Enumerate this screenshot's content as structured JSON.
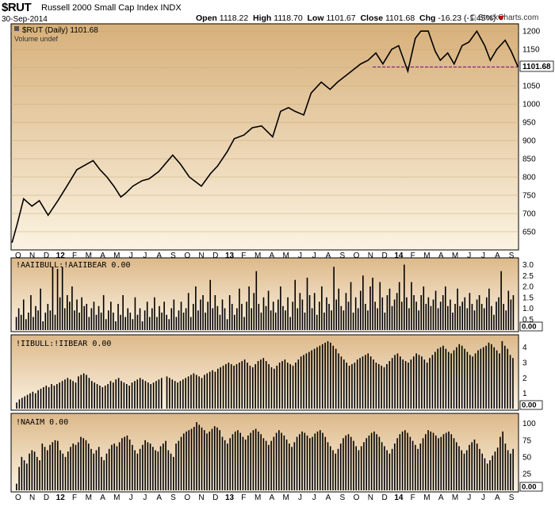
{
  "header": {
    "symbol": "$RUT",
    "name": "Russell 2000 Small Cap Index",
    "exchange": "INDX",
    "date": "30-Sep-2014",
    "open_label": "Open",
    "open": "1118.22",
    "high_label": "High",
    "high": "1118.70",
    "low_label": "Low",
    "low": "1101.67",
    "close_label": "Close",
    "close": "1101.68",
    "chg_label": "Chg",
    "chg": "-16.23 (-1.45%)",
    "brand": "© StockCharts.com"
  },
  "colors": {
    "price_bg_top": "#d7b07a",
    "price_bg_bottom": "#fbf3e1",
    "indicator_bg_top": "#ddb98a",
    "indicator_bg_bottom": "#fbf3e3",
    "line": "#000000",
    "support_line": "#800080",
    "brand_icon": "brand-icon"
  },
  "chart_data": [
    {
      "type": "line",
      "title": "$RUT (Daily) 1101.68",
      "subtitle": "Volume undef",
      "last_value_label": "1101.68",
      "support_level": 1101.68,
      "ylim": [
        600,
        1220
      ],
      "y_ticks": [
        650,
        700,
        750,
        800,
        850,
        900,
        950,
        1000,
        1050,
        1100,
        1150,
        1200
      ],
      "x_ticks": [
        "O",
        "N",
        "D",
        "12",
        "F",
        "M",
        "A",
        "M",
        "J",
        "J",
        "A",
        "S",
        "O",
        "N",
        "D",
        "13",
        "F",
        "M",
        "A",
        "M",
        "J",
        "J",
        "A",
        "S",
        "O",
        "N",
        "D",
        "14",
        "F",
        "M",
        "A",
        "M",
        "J",
        "J",
        "A",
        "S"
      ],
      "x": [
        "2011-10-03",
        "2011-10-14",
        "2011-10-28",
        "2011-11-15",
        "2011-12-01",
        "2011-12-20",
        "2012-01-10",
        "2012-02-01",
        "2012-02-20",
        "2012-03-05",
        "2012-03-26",
        "2012-04-10",
        "2012-04-25",
        "2012-05-10",
        "2012-05-25",
        "2012-06-04",
        "2012-06-20",
        "2012-07-10",
        "2012-07-25",
        "2012-08-15",
        "2012-09-14",
        "2012-10-01",
        "2012-10-20",
        "2012-11-15",
        "2012-12-05",
        "2012-12-20",
        "2013-01-10",
        "2013-01-25",
        "2013-02-15",
        "2013-03-05",
        "2013-03-25",
        "2013-04-18",
        "2013-05-05",
        "2013-05-22",
        "2013-06-05",
        "2013-06-24",
        "2013-07-10",
        "2013-08-01",
        "2013-08-20",
        "2013-09-05",
        "2013-09-25",
        "2013-10-10",
        "2013-10-25",
        "2013-11-10",
        "2013-11-27",
        "2013-12-12",
        "2013-12-31",
        "2014-01-15",
        "2014-02-04",
        "2014-02-20",
        "2014-03-04",
        "2014-03-20",
        "2014-04-04",
        "2014-04-15",
        "2014-05-01",
        "2014-05-15",
        "2014-06-01",
        "2014-06-16",
        "2014-07-03",
        "2014-07-20",
        "2014-08-01",
        "2014-08-15",
        "2014-09-02",
        "2014-09-15",
        "2014-09-30"
      ],
      "values": [
        620,
        670,
        740,
        720,
        735,
        695,
        735,
        780,
        820,
        830,
        845,
        820,
        800,
        775,
        745,
        755,
        775,
        790,
        795,
        815,
        860,
        835,
        800,
        775,
        810,
        830,
        870,
        905,
        915,
        935,
        940,
        910,
        980,
        990,
        980,
        970,
        1030,
        1060,
        1040,
        1060,
        1080,
        1095,
        1110,
        1120,
        1140,
        1110,
        1150,
        1160,
        1090,
        1180,
        1200,
        1200,
        1145,
        1120,
        1140,
        1110,
        1160,
        1170,
        1200,
        1160,
        1120,
        1150,
        1175,
        1145,
        1101.68
      ]
    },
    {
      "type": "bar",
      "title": "!AAIIBULL:!AAIIBEAR 0.00",
      "last_value_label": "0.00",
      "ylim": [
        0,
        3.2
      ],
      "y_ticks": [
        0.5,
        1.0,
        1.5,
        2.0,
        2.5,
        3.0
      ],
      "values": [
        0,
        0.6,
        1.0,
        0.7,
        1.4,
        0.5,
        0.8,
        1.6,
        0.6,
        1.1,
        0.9,
        1.9,
        0.4,
        0.8,
        1.2,
        0.9,
        2.9,
        0.7,
        2.8,
        1.5,
        2.9,
        1.0,
        1.6,
        1.3,
        2.0,
        0.9,
        1.4,
        0.8,
        1.5,
        1.1,
        1.2,
        0.6,
        1.0,
        1.3,
        0.7,
        1.1,
        0.8,
        1.6,
        0.5,
        0.9,
        1.3,
        0.8,
        0.4,
        1.2,
        0.7,
        1.6,
        0.6,
        1.0,
        0.8,
        0.5,
        1.5,
        0.7,
        1.0,
        0.4,
        0.9,
        1.3,
        0.6,
        1.0,
        1.5,
        0.6,
        1.1,
        0.8,
        1.3,
        0.7,
        0.5,
        1.0,
        1.4,
        0.6,
        0.9,
        1.3,
        0.8,
        1.0,
        1.7,
        0.6,
        1.2,
        2.0,
        0.9,
        1.4,
        1.6,
        0.8,
        1.3,
        2.3,
        1.0,
        1.6,
        1.1,
        0.7,
        1.4,
        1.0,
        0.5,
        1.6,
        1.2,
        0.7,
        1.0,
        1.9,
        1.2,
        0.6,
        1.3,
        2.0,
        1.0,
        1.7,
        2.7,
        1.2,
        0.8,
        1.5,
        1.1,
        1.8,
        0.9,
        1.3,
        0.8,
        1.4,
        2.0,
        1.1,
        0.9,
        1.5,
        0.6,
        1.3,
        2.3,
        1.0,
        1.7,
        1.4,
        0.8,
        2.4,
        1.6,
        1.0,
        1.7,
        0.7,
        1.3,
        2.0,
        0.8,
        1.5,
        1.2,
        0.9,
        2.9,
        1.4,
        1.9,
        1.1,
        0.9,
        1.7,
        1.3,
        2.2,
        0.8,
        1.5,
        1.0,
        1.8,
        2.5,
        1.2,
        0.9,
        2.0,
        2.4,
        1.3,
        1.0,
        2.2,
        1.5,
        0.8,
        1.6,
        1.9,
        1.1,
        1.4,
        1.7,
        2.2,
        1.3,
        3.0,
        1.5,
        1.0,
        2.2,
        1.6,
        1.3,
        0.9,
        1.6,
        2.0,
        1.2,
        1.5,
        1.1,
        1.4,
        1.8,
        1.0,
        1.3,
        1.6,
        2.0,
        1.1,
        1.4,
        0.8,
        1.2,
        1.9,
        1.1,
        1.3,
        1.5,
        1.0,
        1.7,
        1.2,
        0.9,
        1.4,
        1.6,
        1.2,
        1.0,
        1.5,
        1.9,
        1.1,
        0.7,
        1.3,
        1.5,
        2.7,
        1.2,
        0.9,
        1.8,
        1.4,
        1.6,
        0
      ]
    },
    {
      "type": "bar",
      "title": "!IIBULL:!IIBEAR 0.00",
      "last_value_label": "0.00",
      "ylim": [
        0,
        4.5
      ],
      "y_ticks": [
        1,
        2,
        3,
        4
      ],
      "values": [
        0,
        0.4,
        0.6,
        0.7,
        0.8,
        0.9,
        1.0,
        1.1,
        1.0,
        1.2,
        1.3,
        1.4,
        1.5,
        1.4,
        1.6,
        1.5,
        1.6,
        1.7,
        1.8,
        1.9,
        2.0,
        1.9,
        1.8,
        1.7,
        2.1,
        2.2,
        2.3,
        2.2,
        2.0,
        1.8,
        1.7,
        1.6,
        1.5,
        1.4,
        1.5,
        1.6,
        1.8,
        1.7,
        1.9,
        2.0,
        1.8,
        1.7,
        1.6,
        1.5,
        1.7,
        1.8,
        1.9,
        2.0,
        1.9,
        1.8,
        1.7,
        1.6,
        1.7,
        1.8,
        1.9,
        2.0,
        0,
        2.1,
        2.0,
        1.9,
        1.8,
        1.7,
        1.8,
        1.9,
        2.0,
        2.1,
        2.2,
        2.3,
        2.2,
        2.1,
        2.0,
        2.2,
        2.3,
        2.4,
        2.5,
        2.4,
        2.6,
        2.7,
        2.8,
        2.9,
        3.0,
        2.9,
        2.8,
        2.9,
        3.0,
        3.1,
        3.2,
        3.0,
        2.8,
        2.7,
        2.9,
        3.1,
        3.2,
        3.3,
        3.1,
        2.9,
        2.7,
        2.6,
        2.8,
        3.0,
        3.1,
        3.2,
        3.0,
        2.9,
        2.8,
        3.0,
        3.2,
        3.4,
        3.5,
        3.6,
        3.7,
        3.8,
        3.9,
        4.0,
        4.1,
        4.2,
        4.3,
        4.4,
        4.3,
        4.1,
        3.9,
        3.6,
        3.4,
        3.2,
        3.0,
        2.8,
        2.9,
        3.0,
        3.2,
        3.3,
        3.4,
        3.5,
        3.6,
        3.4,
        3.2,
        3.0,
        2.9,
        2.8,
        2.7,
        2.9,
        3.1,
        3.3,
        3.5,
        3.6,
        3.4,
        3.2,
        3.1,
        3.0,
        3.2,
        3.4,
        3.6,
        3.5,
        3.4,
        3.2,
        3.0,
        3.3,
        3.5,
        3.7,
        3.9,
        4.0,
        4.1,
        3.9,
        3.7,
        3.6,
        3.8,
        4.0,
        4.2,
        4.1,
        3.9,
        3.7,
        3.5,
        3.4,
        3.6,
        3.8,
        3.9,
        4.0,
        4.1,
        4.3,
        4.2,
        4.0,
        3.8,
        3.6,
        4.4,
        4.1,
        3.9,
        3.5,
        3.3,
        0
      ]
    },
    {
      "type": "bar",
      "title": "!NAAIM 0.00",
      "last_value_label": "0.00",
      "ylim": [
        0,
        108
      ],
      "y_ticks": [
        25,
        50,
        75,
        100
      ],
      "values": [
        0,
        10,
        35,
        50,
        45,
        40,
        55,
        60,
        58,
        50,
        45,
        70,
        65,
        60,
        68,
        72,
        75,
        74,
        60,
        55,
        50,
        58,
        65,
        70,
        68,
        72,
        80,
        78,
        75,
        70,
        62,
        55,
        60,
        65,
        50,
        45,
        55,
        62,
        68,
        70,
        66,
        72,
        78,
        80,
        82,
        76,
        68,
        60,
        55,
        62,
        68,
        75,
        72,
        70,
        65,
        60,
        58,
        66,
        70,
        74,
        60,
        55,
        50,
        70,
        74,
        80,
        85,
        88,
        90,
        92,
        95,
        102,
        98,
        94,
        90,
        85,
        88,
        92,
        96,
        94,
        90,
        80,
        75,
        70,
        78,
        84,
        88,
        90,
        86,
        80,
        76,
        82,
        86,
        90,
        92,
        88,
        84,
        78,
        74,
        68,
        74,
        80,
        86,
        90,
        86,
        82,
        76,
        70,
        65,
        72,
        80,
        84,
        88,
        86,
        82,
        78,
        80,
        85,
        88,
        90,
        86,
        80,
        72,
        66,
        60,
        55,
        62,
        70,
        78,
        82,
        84,
        80,
        74,
        66,
        60,
        66,
        72,
        78,
        82,
        86,
        88,
        84,
        80,
        72,
        66,
        60,
        55,
        62,
        70,
        78,
        84,
        88,
        90,
        86,
        80,
        74,
        68,
        62,
        70,
        78,
        84,
        90,
        88,
        86,
        82,
        78,
        80,
        84,
        86,
        88,
        84,
        78,
        72,
        66,
        60,
        55,
        60,
        68,
        72,
        76,
        70,
        62,
        55,
        48,
        40,
        45,
        52,
        58,
        64,
        80,
        88,
        70,
        60,
        55,
        62,
        0
      ]
    }
  ],
  "panels": {
    "ind1_title": "!AAIIBULL:!AAIIBEAR 0.00",
    "ind2_title": "!IIBULL:!IIBEAR 0.00",
    "ind3_title": "!NAAIM 0.00"
  }
}
